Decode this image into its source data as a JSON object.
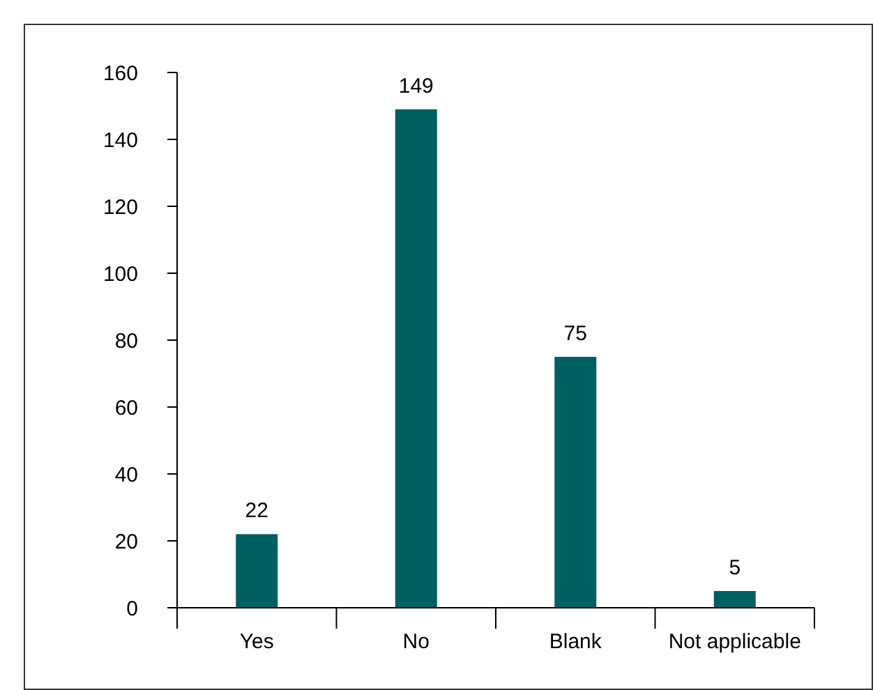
{
  "chart_data": {
    "type": "bar",
    "categories": [
      "Yes",
      "No",
      "Blank",
      "Not applicable"
    ],
    "values": [
      22,
      149,
      75,
      5
    ],
    "color": "#005f63",
    "data_labels": true,
    "grid": false,
    "ylim": [
      0,
      160
    ],
    "yticks": [
      0,
      20,
      40,
      60,
      80,
      100,
      120,
      140,
      160
    ]
  }
}
